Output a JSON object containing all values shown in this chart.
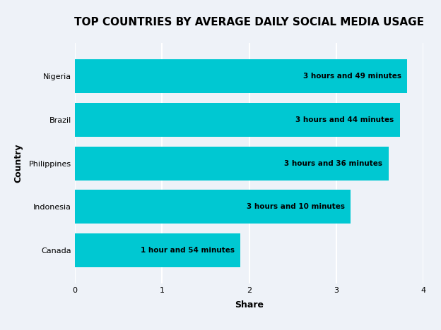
{
  "title": "TOP COUNTRIES BY AVERAGE DAILY SOCIAL MEDIA USAGE",
  "countries": [
    "Canada",
    "Indonesia",
    "Philippines",
    "Brazil",
    "Nigeria"
  ],
  "values": [
    1.9,
    3.167,
    3.6,
    3.733,
    3.817
  ],
  "labels": [
    "1 hour and 54 minutes",
    "3 hours and 10 minutes",
    "3 hours and 36 minutes",
    "3 hours and 44 minutes",
    "3 hours and 49 minutes"
  ],
  "bar_color": "#00C8D2",
  "background_color": "#EEF2F8",
  "xlabel": "Share",
  "ylabel": "Country",
  "xlim": [
    0,
    4
  ],
  "xticks": [
    0,
    1,
    2,
    3,
    4
  ],
  "title_fontsize": 11,
  "label_fontsize": 7.5,
  "axis_label_fontsize": 9,
  "tick_fontsize": 8,
  "bar_height": 0.78
}
